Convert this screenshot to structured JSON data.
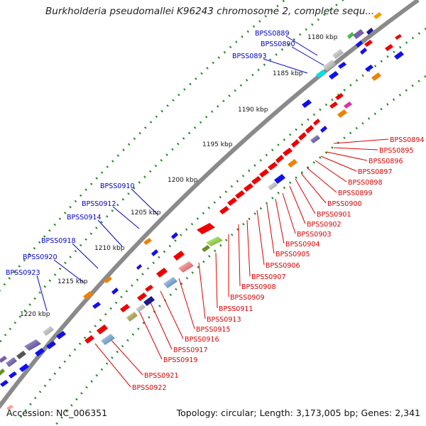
{
  "title": "Burkholderia pseudomallei K96243 chromosome 2, complete sequ...",
  "footer": {
    "accession": "Accession: NC_006351",
    "summary": "Topology: circular; Length: 3,173,005 bp; Genes: 2,341"
  },
  "colors": {
    "backbone": "#8a8a8a",
    "tick": "#228b22",
    "label_forward": "#0000cc",
    "label_reverse": "#dd0000"
  },
  "kbp_ticks": [
    "1180 kbp",
    "1185 kbp",
    "1190 kbp",
    "1195 kbp",
    "1200 kbp",
    "1205 kbp",
    "1210 kbp",
    "1215 kbp",
    "1220 kbp"
  ],
  "labels_left": [
    "BPSS0889",
    "BPSS0890",
    "BPSS0893",
    "BPSS0910",
    "BPSS0912",
    "BPSS0914",
    "BPSS0918",
    "BPSS0920",
    "BPSS0923"
  ],
  "labels_right": [
    "BPSS0894",
    "BPSS0895",
    "BPSS0896",
    "BPSS0897",
    "BPSS0898",
    "BPSS0899",
    "BPSS0900",
    "BPSS0901",
    "BPSS0902",
    "BPSS0903",
    "BPSS0904",
    "BPSS0905",
    "BPSS0906",
    "BPSS0907",
    "BPSS0908",
    "BPSS0909",
    "BPSS0911",
    "BPSS0913",
    "BPSS0915",
    "BPSS0916",
    "BPSS0917",
    "BPSS0919",
    "BPSS0921",
    "BPSS0922"
  ]
}
